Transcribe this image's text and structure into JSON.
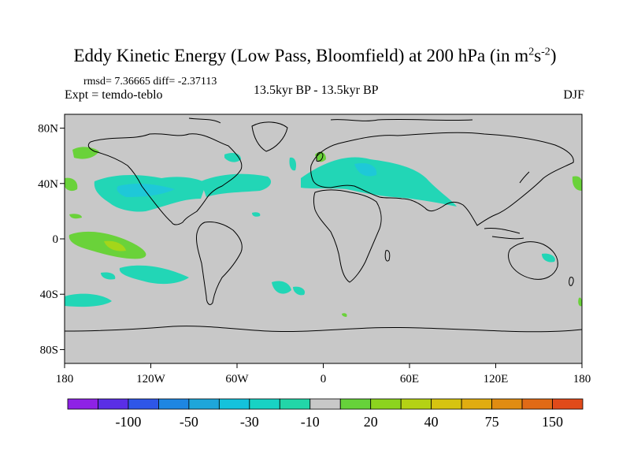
{
  "header": {
    "title_main": "Eddy Kinetic Energy (Low Pass, Bloomfield) at 200 hPa (in m",
    "title_sup1": "2",
    "title_mid": "s",
    "title_sup2": "-2",
    "title_end": ")",
    "stats": "rmsd= 7.36665 diff= -2.37113",
    "experiment": "Expt = temdo-teblo",
    "period": "13.5kyr BP - 13.5kyr BP",
    "season": "DJF"
  },
  "map": {
    "lon_range": [
      -180,
      180
    ],
    "lat_range": [
      -90,
      90
    ],
    "lat_ticks": [
      {
        "lat": 80,
        "label": "80N"
      },
      {
        "lat": 40,
        "label": "40N"
      },
      {
        "lat": 0,
        "label": "0"
      },
      {
        "lat": -40,
        "label": "40S"
      },
      {
        "lat": -80,
        "label": "80S"
      }
    ],
    "lon_ticks": [
      {
        "lon": -180,
        "label": "180"
      },
      {
        "lon": -120,
        "label": "120W"
      },
      {
        "lon": -60,
        "label": "60W"
      },
      {
        "lon": 0,
        "label": "0"
      },
      {
        "lon": 60,
        "label": "60E"
      },
      {
        "lon": 120,
        "label": "120E"
      },
      {
        "lon": 180,
        "label": "180"
      }
    ],
    "colors": {
      "background": "#c8c8c8",
      "teal": "#22d6b6",
      "cyan": "#1ec8d8",
      "green": "#6ad23a",
      "lime": "#a4d61a",
      "yellow": "#d6cc10"
    }
  },
  "colorbar": {
    "colors": [
      "#8e22e6",
      "#5a2ee6",
      "#2e56e8",
      "#1e86e2",
      "#1ea6da",
      "#14c2dc",
      "#18d2c4",
      "#22d6a8",
      "#c8c8c8",
      "#66d23a",
      "#8cd41e",
      "#b4d214",
      "#d6c410",
      "#e0ac10",
      "#e08c12",
      "#e06a16",
      "#e04a1a"
    ],
    "labels": [
      {
        "index": 2,
        "label": "-100"
      },
      {
        "index": 4,
        "label": "-50"
      },
      {
        "index": 6,
        "label": "-30"
      },
      {
        "index": 8,
        "label": "-10"
      },
      {
        "index": 10,
        "label": "20"
      },
      {
        "index": 12,
        "label": "40"
      },
      {
        "index": 14,
        "label": "75"
      },
      {
        "index": 16,
        "label": "150"
      }
    ]
  }
}
